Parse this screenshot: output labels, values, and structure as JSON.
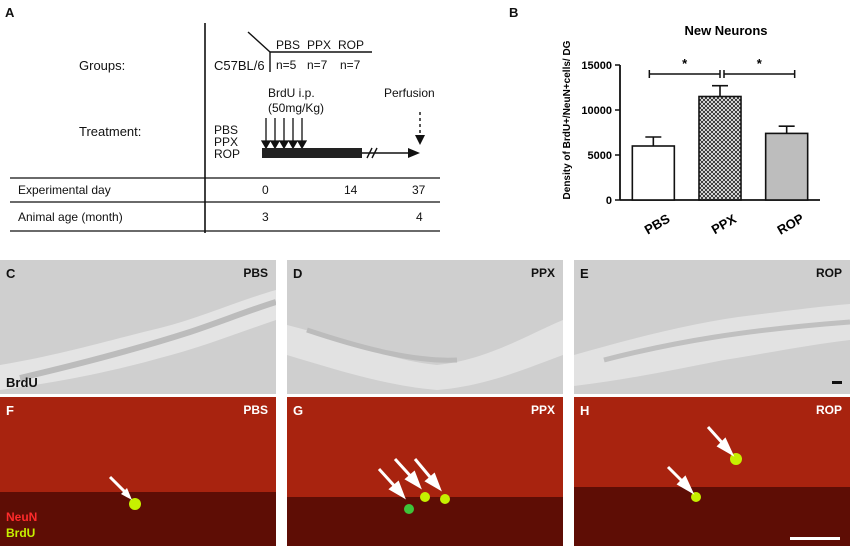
{
  "panel_a": {
    "letter": "A",
    "groups_label": "Groups:",
    "strain": "C57BL/6",
    "groups": [
      {
        "name": "PBS",
        "n": "n=5"
      },
      {
        "name": "PPX",
        "n": "n=7"
      },
      {
        "name": "ROP",
        "n": "n=7"
      }
    ],
    "treatment_label": "Treatment:",
    "treatment_groups": [
      "PBS",
      "PPX",
      "ROP"
    ],
    "brdu_line1": "BrdU i.p.",
    "brdu_line2": "(50mg/Kg)",
    "perfusion": "Perfusion",
    "table": [
      {
        "label": "Experimental day",
        "v0": "0",
        "v1": "14",
        "v2": "37"
      },
      {
        "label": "Animal age (month)",
        "v0": "3",
        "v1": "",
        "v2": "4"
      }
    ]
  },
  "chart_data": {
    "type": "bar",
    "panel_letter": "B",
    "title": "New Neurons",
    "ylabel": "Density of BrdU+/NeuN+cells/ DG",
    "ylim": [
      0,
      15000
    ],
    "yticks": [
      "0",
      "5000",
      "10000",
      "15000"
    ],
    "categories": [
      "PBS",
      "PPX",
      "ROP"
    ],
    "values": [
      6000,
      11500,
      7400
    ],
    "errors": [
      1000,
      1200,
      800
    ],
    "fills": [
      "#ffffff",
      "hatched",
      "#bdbdbd"
    ],
    "significance": [
      {
        "from": "PBS",
        "to": "PPX",
        "label": "*"
      },
      {
        "from": "PPX",
        "to": "ROP",
        "label": "*"
      }
    ]
  },
  "micrographs": {
    "row1": [
      {
        "letter": "C",
        "condition": "PBS"
      },
      {
        "letter": "D",
        "condition": "PPX"
      },
      {
        "letter": "E",
        "condition": "ROP"
      }
    ],
    "row1_stain": "BrdU",
    "row2": [
      {
        "letter": "F",
        "condition": "PBS"
      },
      {
        "letter": "G",
        "condition": "PPX"
      },
      {
        "letter": "H",
        "condition": "ROP"
      }
    ],
    "row2_stain_1": "NeuN",
    "row2_stain_2": "BrdU",
    "colors": {
      "gray_bg": "#cfcfcf",
      "red_bg": "#8a1208",
      "neun": "#ff2b2b",
      "brdu": "#c6f000"
    }
  }
}
